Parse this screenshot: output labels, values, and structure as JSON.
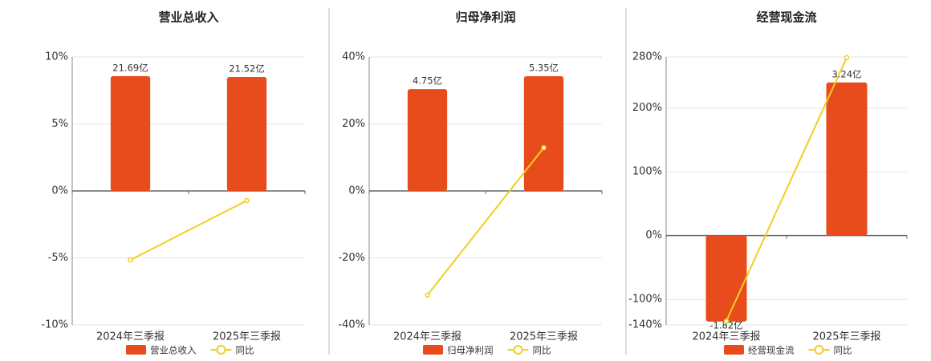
{
  "chart_data": [
    {
      "type": "bar_line",
      "title": "营业总收入",
      "categories": [
        "2024年三季报",
        "2025年三季报"
      ],
      "series": [
        {
          "name": "营业总收入",
          "type": "bar",
          "axis": "y2",
          "color": "#e84c1c",
          "values": [
            21.69,
            21.52
          ],
          "value_labels": [
            "21.69亿",
            "21.52亿"
          ]
        },
        {
          "name": "同比",
          "type": "line",
          "color": "#f2cf1d",
          "values": [
            -5.15,
            -0.72
          ]
        }
      ],
      "ylim": [
        -10,
        10
      ],
      "yticks": [
        {
          "value": -10,
          "label": "-10%"
        },
        {
          "value": -5,
          "label": "-5%"
        },
        {
          "value": 0,
          "label": "0%"
        },
        {
          "value": 5,
          "label": "5%"
        },
        {
          "value": 10,
          "label": "10%"
        }
      ],
      "y2lim": [
        -25.3,
        25.3
      ],
      "grid": true
    },
    {
      "type": "bar_line",
      "title": "归母净利润",
      "categories": [
        "2024年三季报",
        "2025年三季报"
      ],
      "series": [
        {
          "name": "归母净利润",
          "type": "bar",
          "axis": "y2",
          "color": "#e84c1c",
          "values": [
            4.75,
            5.35
          ],
          "value_labels": [
            "4.75亿",
            "5.35亿"
          ]
        },
        {
          "name": "同比",
          "type": "line",
          "color": "#f2cf1d",
          "values": [
            -31.1,
            12.9
          ]
        }
      ],
      "ylim": [
        -40,
        40
      ],
      "yticks": [
        {
          "value": -40,
          "label": "-40%"
        },
        {
          "value": -20,
          "label": "-20%"
        },
        {
          "value": 0,
          "label": "0%"
        },
        {
          "value": 20,
          "label": "20%"
        },
        {
          "value": 40,
          "label": "40%"
        }
      ],
      "y2lim": [
        -6.25,
        6.25
      ],
      "grid": true
    },
    {
      "type": "bar_line",
      "title": "经营现金流",
      "categories": [
        "2024年三季报",
        "2025年三季报"
      ],
      "series": [
        {
          "name": "经营现金流",
          "type": "bar",
          "axis": "y2",
          "color": "#e84c1c",
          "values": [
            -1.82,
            3.24
          ],
          "value_labels": [
            "-1.82亿",
            "3.24亿"
          ]
        },
        {
          "name": "同比",
          "type": "line",
          "color": "#f2cf1d",
          "values": [
            -134,
            279
          ]
        }
      ],
      "ylim": [
        -140,
        280
      ],
      "yticks": [
        {
          "value": -140,
          "label": "-140%"
        },
        {
          "value": -100,
          "label": "-100%"
        },
        {
          "value": 0,
          "label": "0%"
        },
        {
          "value": 100,
          "label": "100%"
        },
        {
          "value": 200,
          "label": "200%"
        },
        {
          "value": 280,
          "label": "280%"
        }
      ],
      "y2lim": [
        -1.89,
        3.78
      ],
      "grid": true
    }
  ]
}
